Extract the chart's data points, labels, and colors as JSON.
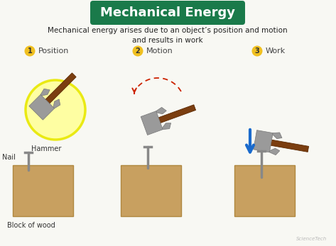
{
  "bg_color": "#f8f8f3",
  "title_text": "Mechanical Energy",
  "title_bg": "#1a7a4a",
  "title_color": "#ffffff",
  "subtitle": "Mechanical energy arises due to an object’s position and motion\nand results in work",
  "subtitle_color": "#222222",
  "label1": "Position",
  "label2": "Motion",
  "label3": "Work",
  "badge_color": "#f0c020",
  "badge_text_color": "#333333",
  "wood_color": "#c8a060",
  "wood_stroke": "#b08840",
  "nail_color": "#888888",
  "hammer_head_color": "#9a9a9a",
  "hammer_handle_color": "#7b3e10",
  "glow_color": "#ffff99",
  "glow_edge": "#e8e800",
  "arrow_red": "#cc2200",
  "arrow_blue": "#1a6acc",
  "text_hammer": "Hammer",
  "text_nail": "Nail",
  "text_wood": "Block of wood",
  "watermark": "ScienceTech",
  "footer_color": "#aaaaaa"
}
